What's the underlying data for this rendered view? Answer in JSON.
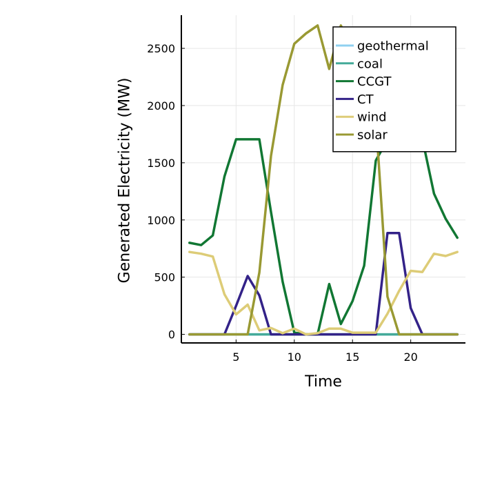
{
  "chart_data": {
    "type": "line",
    "title": "",
    "xlabel": "Time",
    "ylabel": "Generated Electricity (MW)",
    "xlim": [
      0.3,
      24.7
    ],
    "ylim": [
      -75,
      2790
    ],
    "xticks": [
      5,
      10,
      15,
      20
    ],
    "yticks": [
      0,
      500,
      1000,
      1500,
      2000,
      2500
    ],
    "grid": true,
    "legend_position": "top-right",
    "x": [
      1,
      2,
      3,
      4,
      5,
      6,
      7,
      8,
      9,
      10,
      11,
      12,
      13,
      14,
      15,
      16,
      17,
      18,
      19,
      20,
      21,
      22,
      23,
      24
    ],
    "series": [
      {
        "name": "geothermal",
        "color": "#8fd0f0",
        "values": [
          0,
          0,
          0,
          0,
          0,
          0,
          0,
          0,
          0,
          0,
          0,
          0,
          0,
          0,
          0,
          0,
          0,
          0,
          0,
          0,
          0,
          0,
          0,
          0
        ]
      },
      {
        "name": "coal",
        "color": "#44aa99",
        "values": [
          0,
          0,
          0,
          0,
          0,
          0,
          0,
          0,
          0,
          0,
          0,
          0,
          0,
          0,
          0,
          0,
          0,
          0,
          0,
          0,
          0,
          0,
          0,
          0
        ]
      },
      {
        "name": "CCGT",
        "color": "#117733",
        "values": [
          800,
          780,
          865,
          1380,
          1705,
          1705,
          1705,
          1070,
          460,
          15,
          0,
          0,
          440,
          90,
          290,
          600,
          1520,
          1700,
          1710,
          1700,
          1710,
          1230,
          1010,
          845
        ]
      },
      {
        "name": "CT",
        "color": "#332288",
        "values": [
          0,
          0,
          0,
          0,
          250,
          510,
          340,
          0,
          0,
          0,
          0,
          0,
          0,
          0,
          0,
          0,
          0,
          885,
          885,
          230,
          0,
          0,
          0,
          0
        ]
      },
      {
        "name": "wind",
        "color": "#ddcc77",
        "values": [
          720,
          705,
          680,
          350,
          175,
          260,
          35,
          55,
          10,
          50,
          0,
          10,
          50,
          50,
          15,
          15,
          15,
          180,
          380,
          555,
          545,
          705,
          685,
          720
        ]
      },
      {
        "name": "solar",
        "color": "#999933",
        "values": [
          0,
          0,
          0,
          0,
          0,
          0,
          540,
          1560,
          2180,
          2540,
          2630,
          2700,
          2320,
          2700,
          2490,
          2390,
          1890,
          330,
          0,
          0,
          0,
          0,
          0,
          0
        ]
      }
    ]
  }
}
